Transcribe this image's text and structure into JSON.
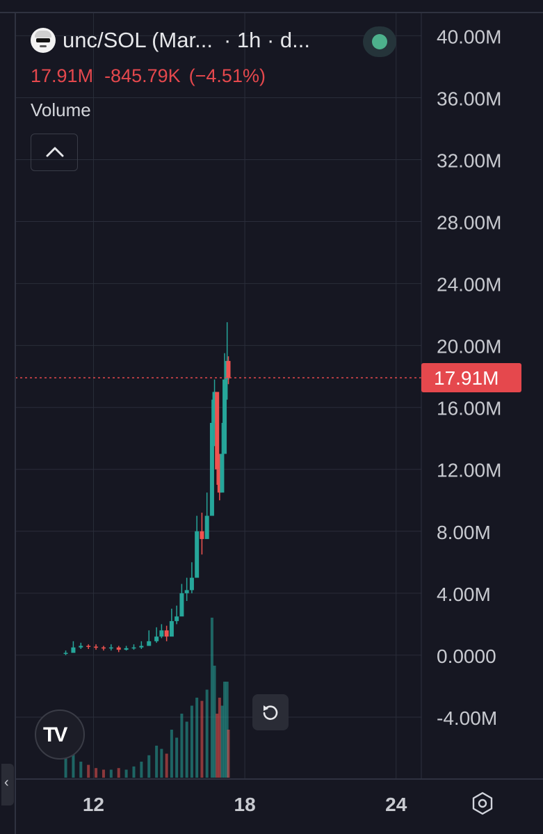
{
  "header": {
    "symbol_text": "unc/SOL (Mar...",
    "interval_text": "· 1h · d...",
    "last_value": "17.91M",
    "change": "-845.79K",
    "change_pct": "(−4.51%)",
    "volume_label": "Volume"
  },
  "colors": {
    "background": "#161722",
    "grid": "#2a2d3a",
    "up": "#26a69a",
    "down": "#ef5350",
    "price_line": "#e5484d",
    "live_dot": "#4db18c"
  },
  "icons": {
    "collapse": "chevron-up-icon",
    "reset": "rotate-ccw-icon",
    "settings": "gear-hex-icon",
    "logo": "tradingview-logo-icon",
    "panel": "chevron-left-icon"
  },
  "price_badge": "17.91M",
  "logo_text": "TV",
  "chart_data": {
    "type": "candlestick",
    "title": "unc/SOL (Mar...",
    "interval": "1h",
    "y_ticks": [
      "40.00M",
      "36.00M",
      "32.00M",
      "28.00M",
      "24.00M",
      "20.00M",
      "16.00M",
      "12.00M",
      "8.00M",
      "4.00M",
      "0.0000",
      "-4.00M"
    ],
    "y_tick_values": [
      40,
      36,
      32,
      28,
      24,
      20,
      16,
      12,
      8,
      4,
      0,
      -4
    ],
    "y_unit": "M",
    "ylim": [
      -8,
      41.5
    ],
    "x_ticks": [
      "12",
      "18",
      "24"
    ],
    "x_tick_values": [
      12,
      18,
      24
    ],
    "xlim": [
      8.9,
      25.0
    ],
    "last_price": 17.91,
    "series_close": [
      [
        10.9,
        0.15
      ],
      [
        11.2,
        0.5
      ],
      [
        11.5,
        0.6
      ],
      [
        11.8,
        0.55
      ],
      [
        12.1,
        0.5
      ],
      [
        12.4,
        0.45
      ],
      [
        12.7,
        0.5
      ],
      [
        13.0,
        0.35
      ],
      [
        13.3,
        0.45
      ],
      [
        13.6,
        0.5
      ],
      [
        13.9,
        0.6
      ],
      [
        14.2,
        0.9
      ],
      [
        14.5,
        1.2
      ],
      [
        14.7,
        1.6
      ],
      [
        14.9,
        1.2
      ],
      [
        15.1,
        2.2
      ],
      [
        15.3,
        2.5
      ],
      [
        15.5,
        4.0
      ],
      [
        15.7,
        4.2
      ],
      [
        15.9,
        5.0
      ],
      [
        16.1,
        8.0
      ],
      [
        16.3,
        7.5
      ],
      [
        16.5,
        9.0
      ],
      [
        16.7,
        15.0
      ],
      [
        16.8,
        17.0
      ],
      [
        16.9,
        12.0
      ],
      [
        17.0,
        10.5
      ],
      [
        17.1,
        13.0
      ],
      [
        17.2,
        17.8
      ],
      [
        17.3,
        19.0
      ],
      [
        17.35,
        17.91
      ]
    ],
    "series_high": [
      [
        10.9,
        0.3
      ],
      [
        11.2,
        0.9
      ],
      [
        11.5,
        0.8
      ],
      [
        11.8,
        0.7
      ],
      [
        12.1,
        0.7
      ],
      [
        12.4,
        0.6
      ],
      [
        12.7,
        0.7
      ],
      [
        13.0,
        0.6
      ],
      [
        13.3,
        0.6
      ],
      [
        13.6,
        0.7
      ],
      [
        13.9,
        0.9
      ],
      [
        14.2,
        1.6
      ],
      [
        14.5,
        1.8
      ],
      [
        14.7,
        2.0
      ],
      [
        14.9,
        1.9
      ],
      [
        15.1,
        3.0
      ],
      [
        15.3,
        3.2
      ],
      [
        15.5,
        4.6
      ],
      [
        15.7,
        5.0
      ],
      [
        15.9,
        6.0
      ],
      [
        16.1,
        9.0
      ],
      [
        16.3,
        9.2
      ],
      [
        16.5,
        10.5
      ],
      [
        16.7,
        16.5
      ],
      [
        16.8,
        17.8
      ],
      [
        16.9,
        14.5
      ],
      [
        17.0,
        13.0
      ],
      [
        17.1,
        15.0
      ],
      [
        17.2,
        19.5
      ],
      [
        17.3,
        21.5
      ],
      [
        17.35,
        19.3
      ]
    ],
    "series_low": [
      [
        10.9,
        0.0
      ],
      [
        11.2,
        0.2
      ],
      [
        11.5,
        0.4
      ],
      [
        11.8,
        0.4
      ],
      [
        12.1,
        0.35
      ],
      [
        12.4,
        0.3
      ],
      [
        12.7,
        0.3
      ],
      [
        13.0,
        0.2
      ],
      [
        13.3,
        0.3
      ],
      [
        13.6,
        0.35
      ],
      [
        13.9,
        0.4
      ],
      [
        14.2,
        0.6
      ],
      [
        14.5,
        0.8
      ],
      [
        14.7,
        1.1
      ],
      [
        14.9,
        0.9
      ],
      [
        15.1,
        1.8
      ],
      [
        15.3,
        2.0
      ],
      [
        15.5,
        3.0
      ],
      [
        15.7,
        3.5
      ],
      [
        15.9,
        4.0
      ],
      [
        16.1,
        6.5
      ],
      [
        16.3,
        6.5
      ],
      [
        16.5,
        8.0
      ],
      [
        16.7,
        11.0
      ],
      [
        16.8,
        13.5
      ],
      [
        16.9,
        11.0
      ],
      [
        17.0,
        10.0
      ],
      [
        17.1,
        11.5
      ],
      [
        17.2,
        13.0
      ],
      [
        17.3,
        16.5
      ],
      [
        17.35,
        17.5
      ]
    ],
    "volume_bars_rel": [
      [
        10.9,
        0.2
      ],
      [
        11.2,
        0.15
      ],
      [
        11.5,
        0.1
      ],
      [
        11.8,
        0.08
      ],
      [
        12.1,
        0.06
      ],
      [
        12.4,
        0.05
      ],
      [
        12.7,
        0.05
      ],
      [
        13.0,
        0.06
      ],
      [
        13.3,
        0.05
      ],
      [
        13.6,
        0.07
      ],
      [
        13.9,
        0.1
      ],
      [
        14.2,
        0.14
      ],
      [
        14.5,
        0.2
      ],
      [
        14.7,
        0.18
      ],
      [
        14.9,
        0.15
      ],
      [
        15.1,
        0.3
      ],
      [
        15.3,
        0.25
      ],
      [
        15.5,
        0.4
      ],
      [
        15.7,
        0.35
      ],
      [
        15.9,
        0.45
      ],
      [
        16.1,
        0.5
      ],
      [
        16.3,
        0.48
      ],
      [
        16.5,
        0.55
      ],
      [
        16.7,
        1.0
      ],
      [
        16.8,
        0.7
      ],
      [
        16.9,
        0.4
      ],
      [
        17.0,
        0.5
      ],
      [
        17.1,
        0.45
      ],
      [
        17.2,
        0.6
      ],
      [
        17.3,
        0.6
      ],
      [
        17.35,
        0.3
      ]
    ],
    "grid": true,
    "legend": "top-left"
  }
}
